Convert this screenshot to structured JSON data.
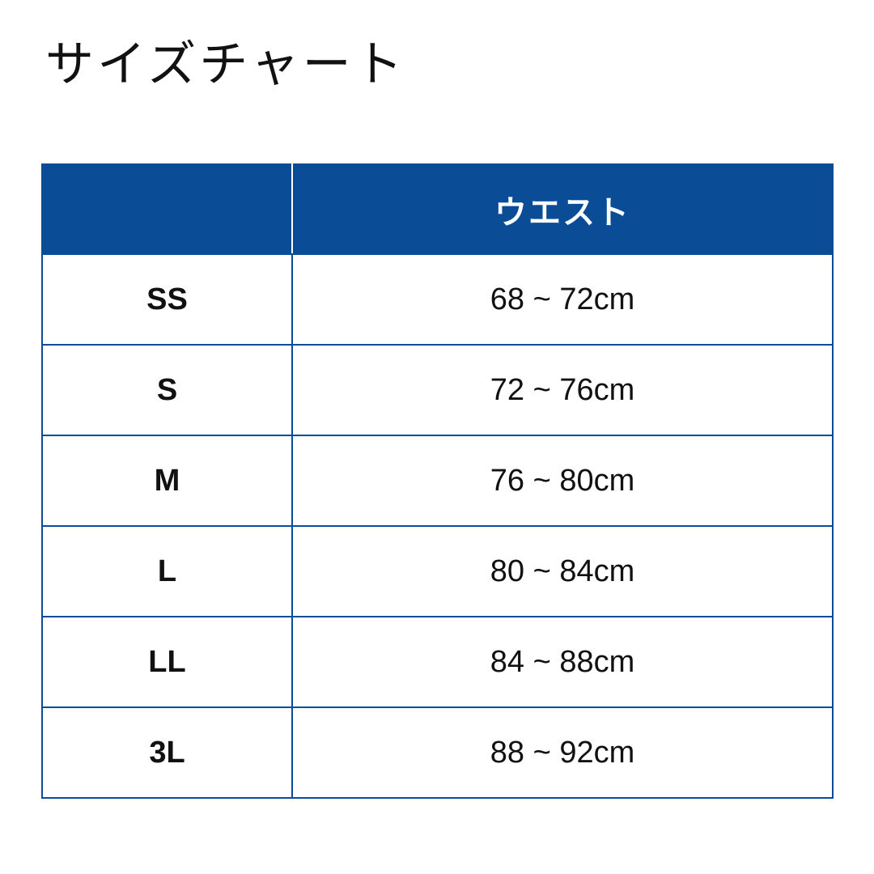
{
  "title": "サイズチャート",
  "table": {
    "headers": [
      "",
      "ウエスト"
    ],
    "rows": [
      {
        "size": "SS",
        "waist": "68 ~ 72cm"
      },
      {
        "size": "S",
        "waist": "72 ~ 76cm"
      },
      {
        "size": "M",
        "waist": "76 ~ 80cm"
      },
      {
        "size": "L",
        "waist": "80 ~ 84cm"
      },
      {
        "size": "LL",
        "waist": "84 ~ 88cm"
      },
      {
        "size": "3L",
        "waist": "88 ~ 92cm"
      }
    ]
  },
  "colors": {
    "header_bg": "#0a4d96",
    "border": "#0a4d96"
  }
}
